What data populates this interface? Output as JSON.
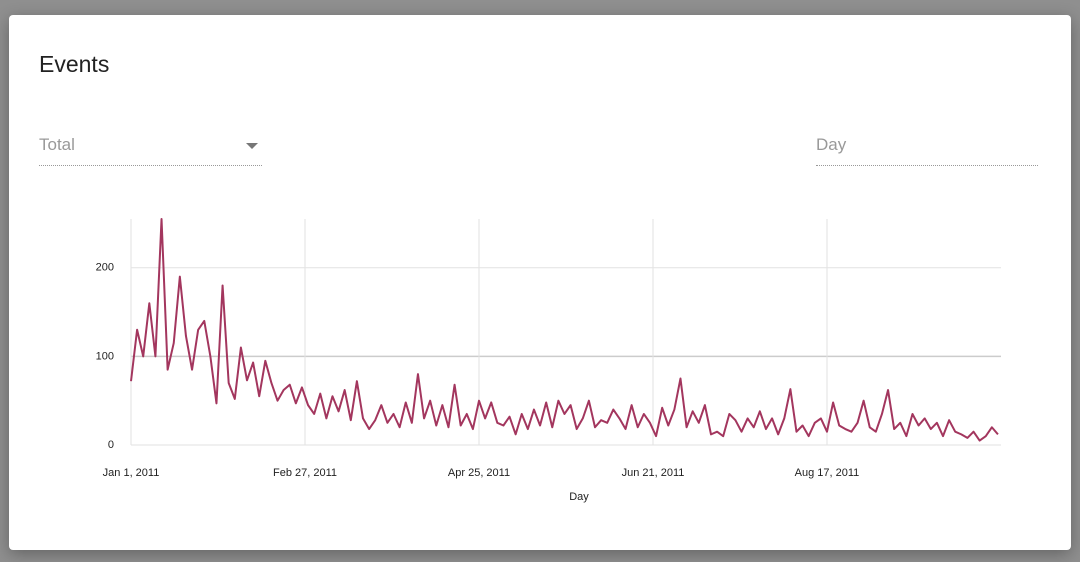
{
  "dialog": {
    "title": "Events",
    "metric_select": "Total",
    "interval_placeholder": "Day"
  },
  "chart_data": {
    "type": "line",
    "xlabel": "Day",
    "color": "#a3365e",
    "grid": true,
    "xlim": [
      "2011-01-01",
      "2011-10-13"
    ],
    "xticks": [
      {
        "value": "2011-01-01",
        "label": "Jan 1, 2011"
      },
      {
        "value": "2011-02-27",
        "label": "Feb 27, 2011"
      },
      {
        "value": "2011-04-25",
        "label": "Apr 25, 2011"
      },
      {
        "value": "2011-06-21",
        "label": "Jun 21, 2011"
      },
      {
        "value": "2011-08-17",
        "label": "Aug 17, 2011"
      }
    ],
    "ylim": [
      0,
      255
    ],
    "yticks": [
      0,
      100,
      200
    ],
    "x": [
      "2011-01-01",
      "2011-01-03",
      "2011-01-05",
      "2011-01-07",
      "2011-01-09",
      "2011-01-11",
      "2011-01-13",
      "2011-01-15",
      "2011-01-17",
      "2011-01-19",
      "2011-01-21",
      "2011-01-23",
      "2011-01-25",
      "2011-01-27",
      "2011-01-29",
      "2011-01-31",
      "2011-02-02",
      "2011-02-04",
      "2011-02-06",
      "2011-02-08",
      "2011-02-10",
      "2011-02-12",
      "2011-02-14",
      "2011-02-16",
      "2011-02-18",
      "2011-02-20",
      "2011-02-22",
      "2011-02-24",
      "2011-02-26",
      "2011-02-28",
      "2011-03-02",
      "2011-03-04",
      "2011-03-06",
      "2011-03-08",
      "2011-03-10",
      "2011-03-12",
      "2011-03-14",
      "2011-03-16",
      "2011-03-18",
      "2011-03-20",
      "2011-03-22",
      "2011-03-24",
      "2011-03-26",
      "2011-03-28",
      "2011-03-30",
      "2011-04-01",
      "2011-04-03",
      "2011-04-05",
      "2011-04-07",
      "2011-04-09",
      "2011-04-11",
      "2011-04-13",
      "2011-04-15",
      "2011-04-17",
      "2011-04-19",
      "2011-04-21",
      "2011-04-23",
      "2011-04-25",
      "2011-04-27",
      "2011-04-29",
      "2011-05-01",
      "2011-05-03",
      "2011-05-05",
      "2011-05-07",
      "2011-05-09",
      "2011-05-11",
      "2011-05-13",
      "2011-05-15",
      "2011-05-17",
      "2011-05-19",
      "2011-05-21",
      "2011-05-23",
      "2011-05-25",
      "2011-05-27",
      "2011-05-29",
      "2011-05-31",
      "2011-06-02",
      "2011-06-04",
      "2011-06-06",
      "2011-06-08",
      "2011-06-10",
      "2011-06-12",
      "2011-06-14",
      "2011-06-16",
      "2011-06-18",
      "2011-06-20",
      "2011-06-22",
      "2011-06-24",
      "2011-06-26",
      "2011-06-28",
      "2011-06-30",
      "2011-07-02",
      "2011-07-04",
      "2011-07-06",
      "2011-07-08",
      "2011-07-10",
      "2011-07-12",
      "2011-07-14",
      "2011-07-16",
      "2011-07-18",
      "2011-07-20",
      "2011-07-22",
      "2011-07-24",
      "2011-07-26",
      "2011-07-28",
      "2011-07-30",
      "2011-08-01",
      "2011-08-03",
      "2011-08-05",
      "2011-08-07",
      "2011-08-09",
      "2011-08-11",
      "2011-08-13",
      "2011-08-15",
      "2011-08-17",
      "2011-08-19",
      "2011-08-21",
      "2011-08-23",
      "2011-08-25",
      "2011-08-27",
      "2011-08-29",
      "2011-08-31",
      "2011-09-02",
      "2011-09-04",
      "2011-09-06",
      "2011-09-08",
      "2011-09-10",
      "2011-09-12",
      "2011-09-14",
      "2011-09-16",
      "2011-09-18",
      "2011-09-20",
      "2011-09-22",
      "2011-09-24",
      "2011-09-26",
      "2011-09-28",
      "2011-09-30",
      "2011-10-02",
      "2011-10-04",
      "2011-10-06",
      "2011-10-08",
      "2011-10-10",
      "2011-10-12"
    ],
    "values": [
      72,
      130,
      100,
      160,
      100,
      255,
      85,
      115,
      190,
      123,
      85,
      130,
      140,
      100,
      47,
      180,
      70,
      52,
      110,
      73,
      93,
      55,
      95,
      70,
      50,
      62,
      68,
      47,
      65,
      45,
      35,
      58,
      30,
      55,
      38,
      62,
      28,
      72,
      30,
      18,
      28,
      45,
      25,
      35,
      20,
      48,
      25,
      80,
      30,
      50,
      22,
      45,
      20,
      68,
      22,
      35,
      18,
      50,
      30,
      48,
      25,
      22,
      32,
      12,
      35,
      18,
      40,
      22,
      48,
      20,
      50,
      35,
      45,
      18,
      30,
      50,
      20,
      28,
      25,
      40,
      30,
      18,
      45,
      20,
      35,
      25,
      10,
      42,
      22,
      40,
      75,
      20,
      38,
      25,
      45,
      12,
      15,
      10,
      35,
      28,
      15,
      30,
      20,
      38,
      18,
      30,
      12,
      30,
      63,
      15,
      22,
      10,
      25,
      30,
      15,
      48,
      22,
      18,
      15,
      25,
      50,
      20,
      15,
      35,
      62,
      18,
      25,
      10,
      35,
      22,
      30,
      18,
      25,
      10,
      28,
      15,
      12,
      8,
      15,
      5,
      10,
      20,
      12
    ]
  }
}
